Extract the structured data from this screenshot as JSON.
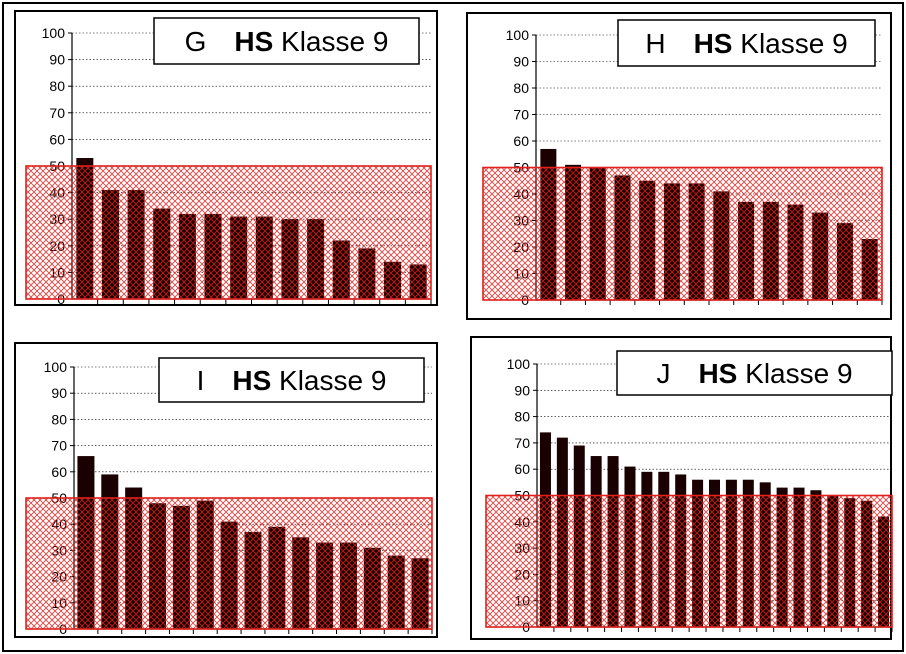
{
  "colors": {
    "bar": "#1a0000",
    "band_stroke": "#e0201c",
    "band_hatch": "#e0201c",
    "grid": "#000000"
  },
  "chart_data": [
    {
      "type": "bar",
      "title_letter": "G",
      "title_bold": "HS",
      "title_rest": "Klasse 9",
      "y_ticks": [
        "0",
        "10",
        "20",
        "30",
        "40",
        "50",
        "60",
        "70",
        "80",
        "90",
        "100"
      ],
      "ylim": [
        0,
        100
      ],
      "grid": true,
      "highlight_band": [
        0,
        50
      ],
      "values": [
        53,
        41,
        41,
        34,
        32,
        32,
        31,
        31,
        30,
        30,
        22,
        19,
        14,
        13
      ]
    },
    {
      "type": "bar",
      "title_letter": "H",
      "title_bold": "HS",
      "title_rest": "Klasse 9",
      "y_ticks": [
        "0",
        "10",
        "20",
        "30",
        "40",
        "50",
        "60",
        "70",
        "80",
        "90",
        "100"
      ],
      "ylim": [
        0,
        100
      ],
      "grid": true,
      "highlight_band": [
        0,
        50
      ],
      "values": [
        57,
        51,
        50,
        47,
        45,
        44,
        44,
        41,
        37,
        37,
        36,
        33,
        29,
        23
      ]
    },
    {
      "type": "bar",
      "title_letter": "I",
      "title_bold": "HS",
      "title_rest": "Klasse 9",
      "y_ticks": [
        "0",
        "10",
        "20",
        "30",
        "40",
        "50",
        "60",
        "70",
        "80",
        "90",
        "100"
      ],
      "ylim": [
        0,
        100
      ],
      "grid": true,
      "highlight_band": [
        0,
        50
      ],
      "values": [
        66,
        59,
        54,
        48,
        47,
        49,
        41,
        37,
        39,
        35,
        33,
        33,
        31,
        28,
        27
      ]
    },
    {
      "type": "bar",
      "title_letter": "J",
      "title_bold": "HS",
      "title_rest": "Klasse 9",
      "y_ticks": [
        "0",
        "10",
        "20",
        "30",
        "40",
        "50",
        "60",
        "70",
        "80",
        "90",
        "100"
      ],
      "ylim": [
        0,
        100
      ],
      "grid": true,
      "highlight_band": [
        0,
        50
      ],
      "values": [
        74,
        72,
        69,
        65,
        65,
        61,
        59,
        59,
        58,
        56,
        56,
        56,
        56,
        55,
        53,
        53,
        52,
        50,
        49,
        48,
        42
      ]
    }
  ]
}
